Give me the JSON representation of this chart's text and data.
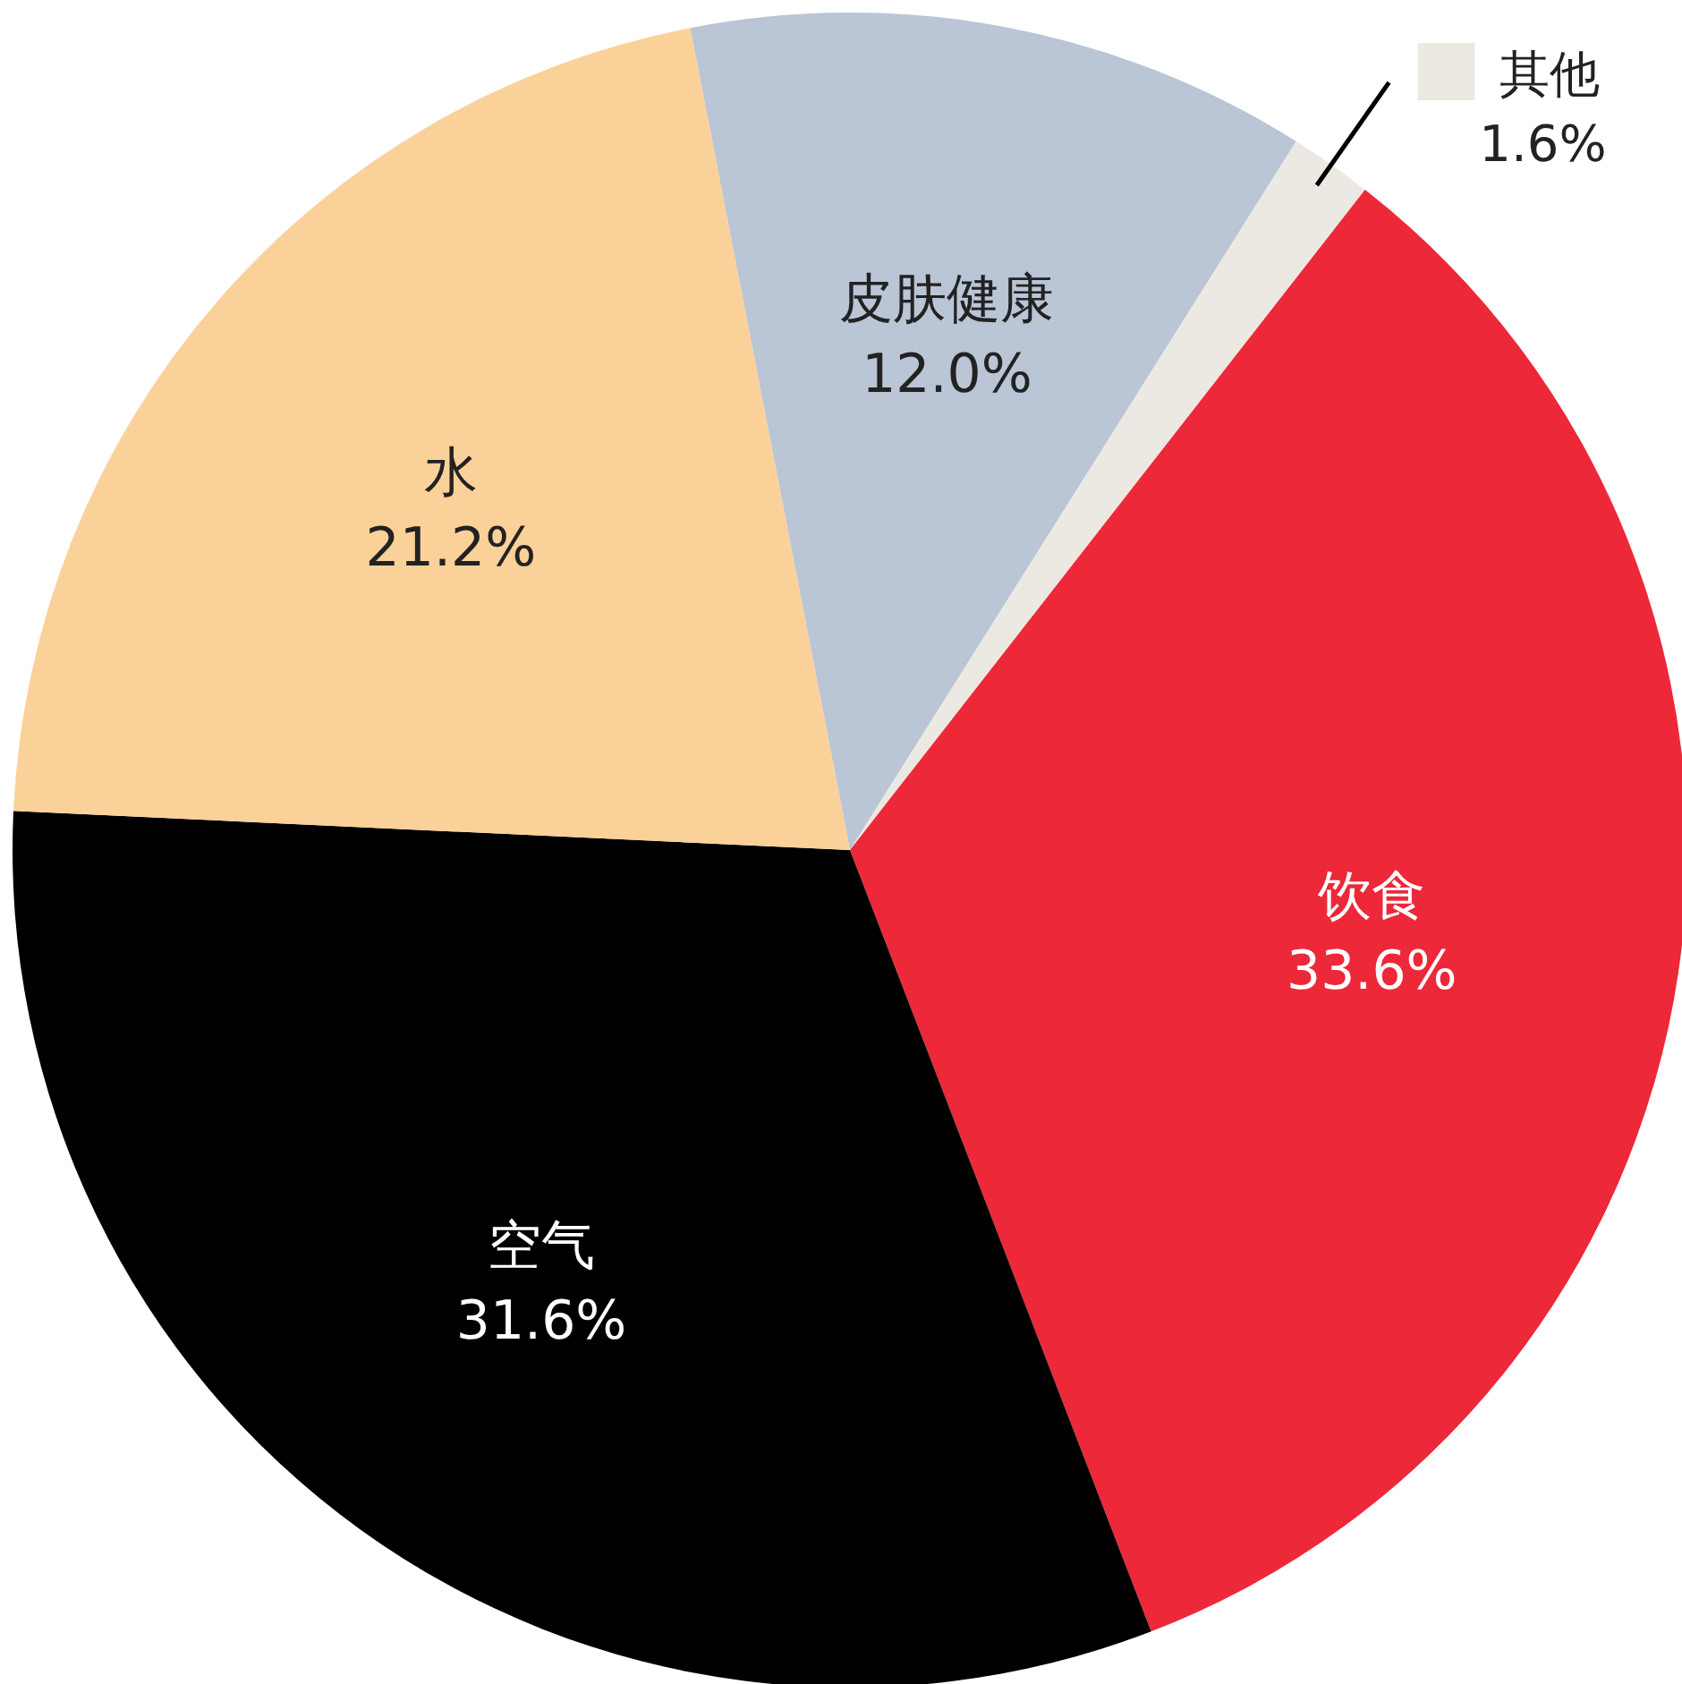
{
  "chart_data": {
    "type": "pie",
    "categories": [
      "皮肤健康",
      "其他",
      "饮食",
      "空气",
      "水"
    ],
    "values": [
      12.0,
      1.6,
      33.6,
      31.6,
      21.2
    ],
    "value_labels": [
      "12.0%",
      "1.6%",
      "33.6%",
      "31.6%",
      "21.2%"
    ],
    "colors": [
      "#bac5d6",
      "#ece9e2",
      "#ed2839",
      "#000000",
      "#fbd19a"
    ]
  }
}
